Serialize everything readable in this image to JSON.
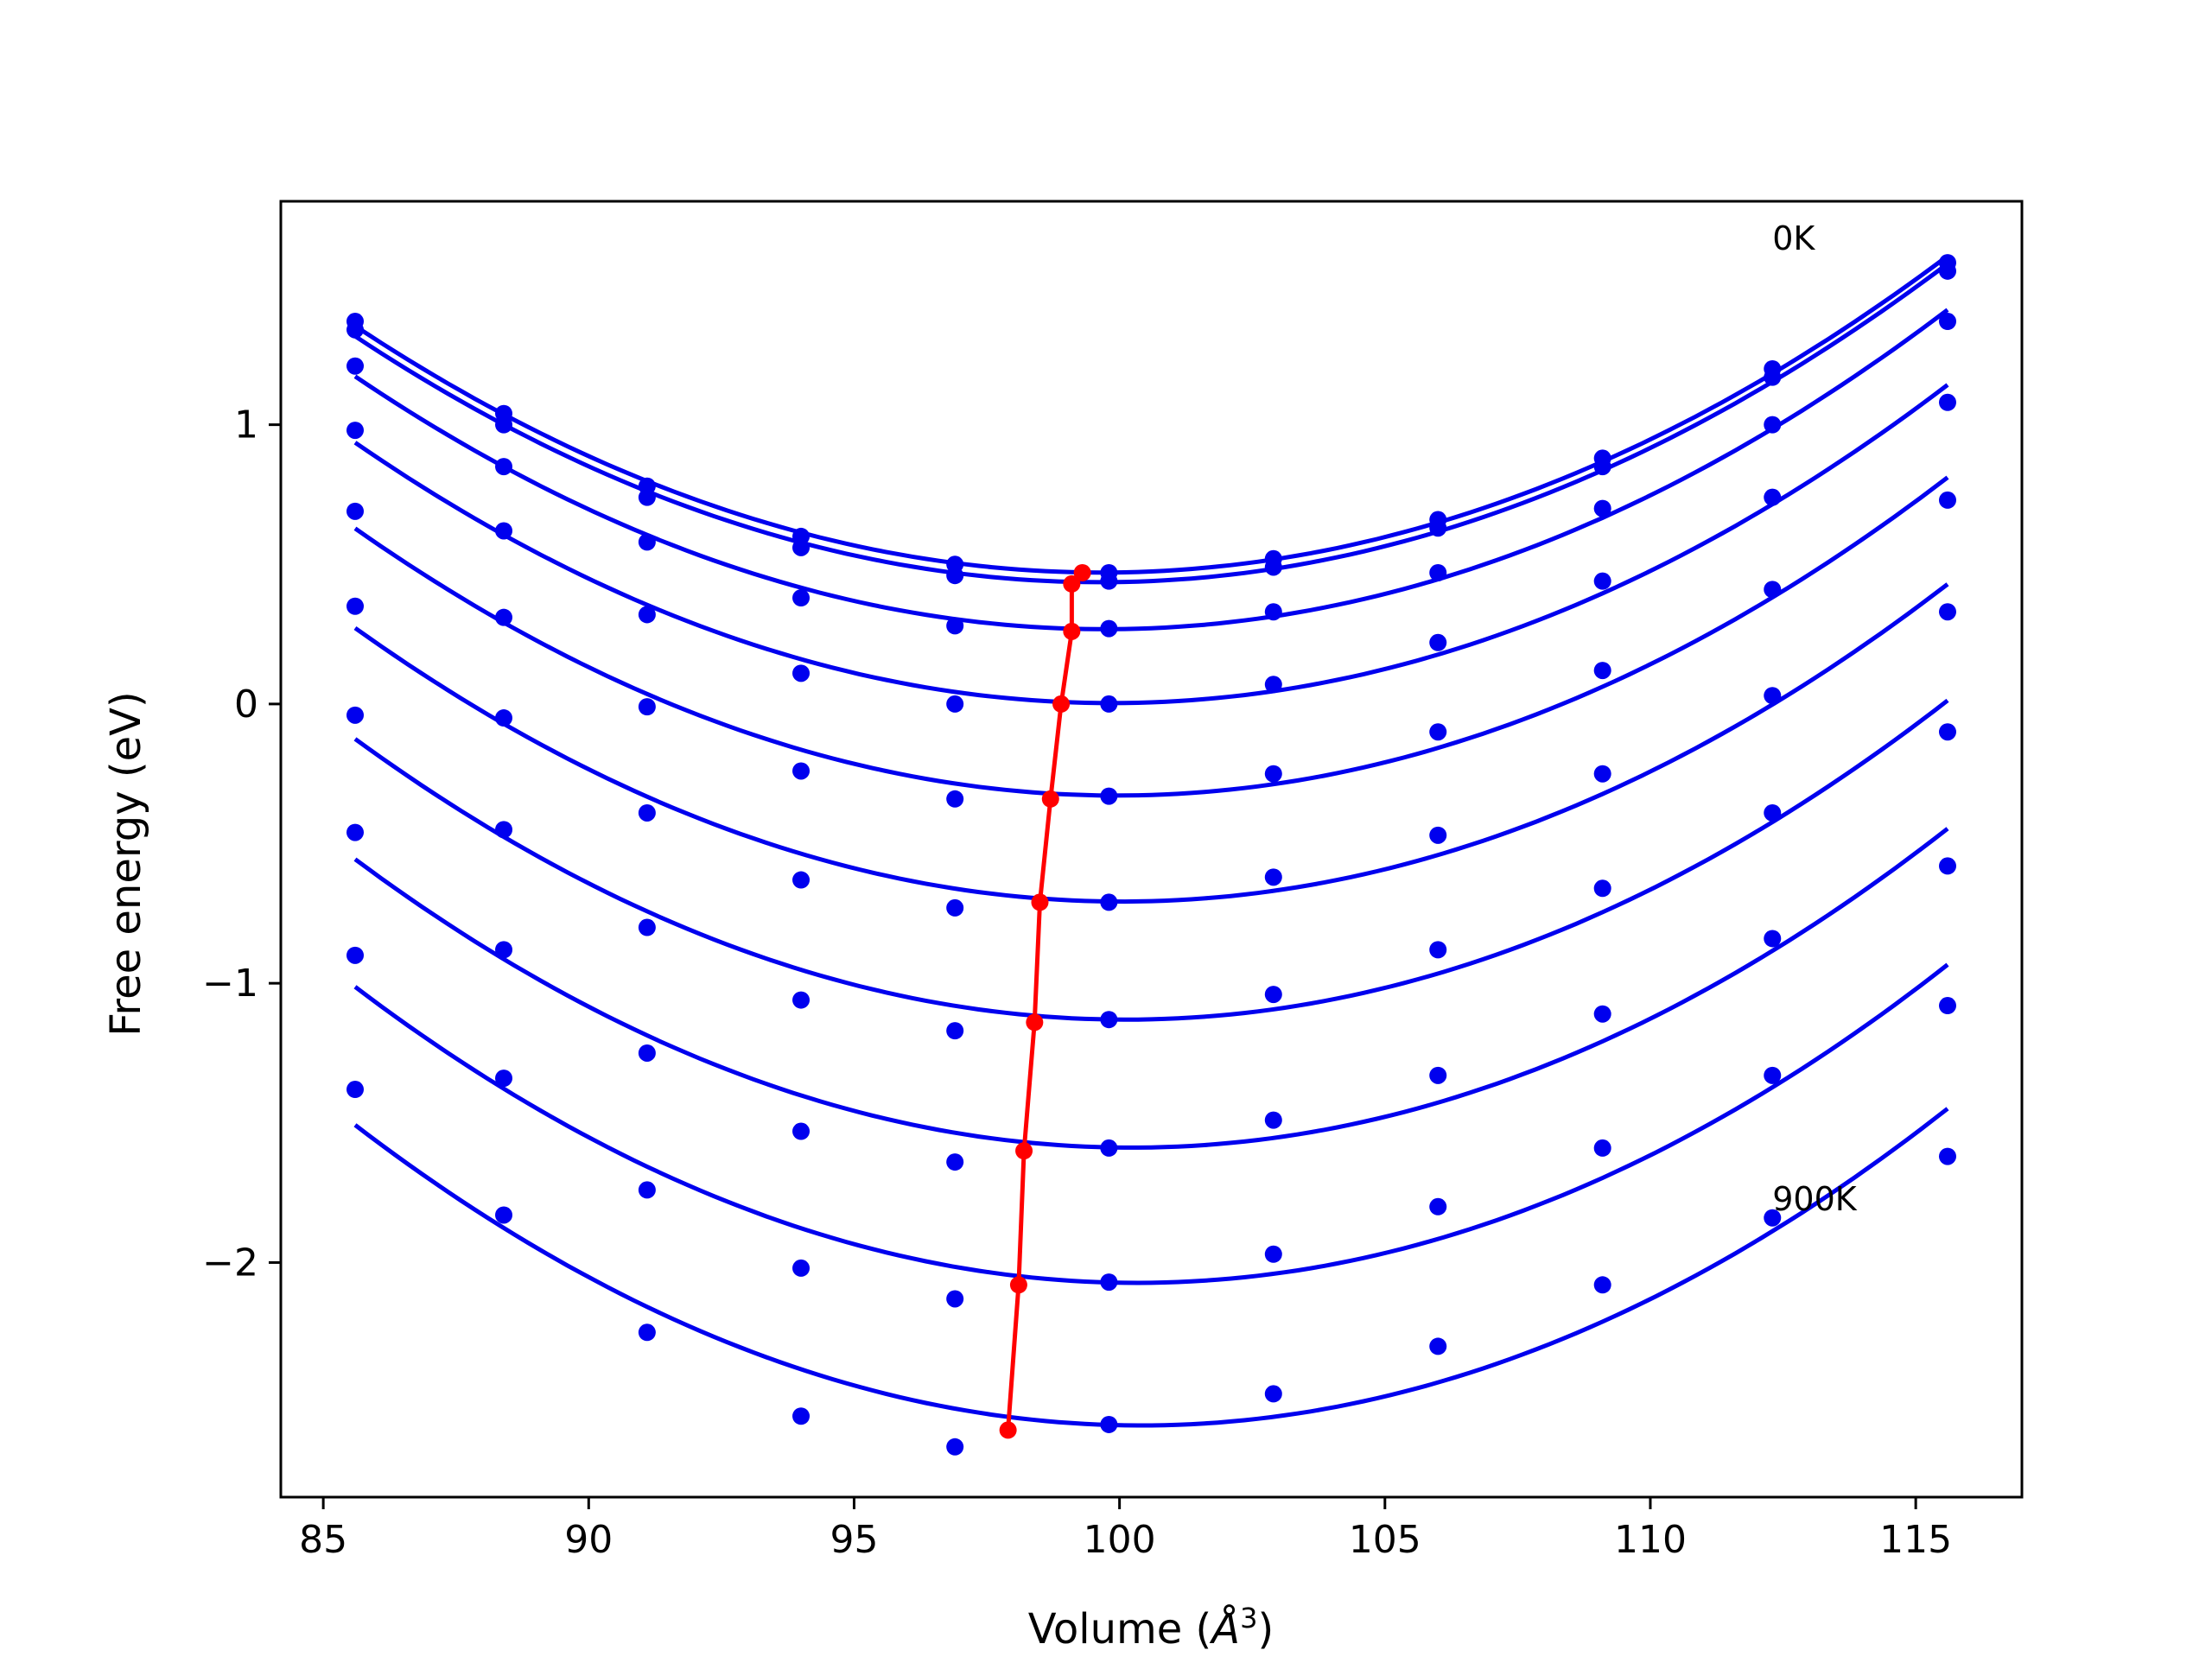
{
  "chart_data": {
    "type": "line",
    "title": "",
    "xlabel_text": "Volume (",
    "xlabel_unit_base": "Å",
    "xlabel_unit_exp": "3",
    "xlabel_close": ")",
    "ylabel": "Free energy (eV)",
    "xlim": [
      84.2,
      117.0
    ],
    "ylim": [
      -2.84,
      1.8
    ],
    "xticks": [
      85,
      90,
      95,
      100,
      105,
      110,
      115
    ],
    "xtick_labels": [
      "85",
      "90",
      "95",
      "100",
      "105",
      "110",
      "115"
    ],
    "yticks": [
      -2,
      -1,
      0,
      1
    ],
    "ytick_labels": [
      "−2",
      "−1",
      "0",
      "1"
    ],
    "grid": false,
    "legend": "none",
    "colors": {
      "curves": "#0000ee",
      "minima": "#ff0000"
    },
    "annotations": [
      {
        "text": "0K",
        "x": 112.3,
        "y": 1.67
      },
      {
        "text": "900K",
        "x": 112.3,
        "y": -1.77
      }
    ],
    "x": [
      85.6,
      88.4,
      91.1,
      94.0,
      96.9,
      99.8,
      102.9,
      106.0,
      109.1,
      112.3,
      115.6
    ],
    "series": [
      {
        "values": [
          1.37,
          1.04,
          0.78,
          0.6,
          0.5,
          0.47,
          0.52,
          0.66,
          0.88,
          1.2,
          1.58
        ],
        "fit_min": [
          99.3,
          0.47
        ]
      },
      {
        "values": [
          1.34,
          1.0,
          0.74,
          0.56,
          0.46,
          0.44,
          0.49,
          0.63,
          0.85,
          1.17,
          1.55
        ],
        "fit_min": [
          99.1,
          0.43
        ]
      },
      {
        "values": [
          1.21,
          0.85,
          0.58,
          0.38,
          0.28,
          0.27,
          0.33,
          0.47,
          0.7,
          1.0,
          1.37
        ],
        "fit_min": [
          99.1,
          0.26
        ]
      },
      {
        "values": [
          0.98,
          0.62,
          0.32,
          0.11,
          0.0,
          0.0,
          0.07,
          0.22,
          0.44,
          0.74,
          1.08
        ],
        "fit_min": [
          98.9,
          0.0
        ]
      },
      {
        "values": [
          0.69,
          0.31,
          -0.01,
          -0.24,
          -0.34,
          -0.33,
          -0.25,
          -0.1,
          0.12,
          0.41,
          0.73
        ],
        "fit_min": [
          98.7,
          -0.34
        ]
      },
      {
        "values": [
          0.35,
          -0.05,
          -0.39,
          -0.63,
          -0.73,
          -0.71,
          -0.62,
          -0.47,
          -0.25,
          0.03,
          0.33
        ],
        "fit_min": [
          98.5,
          -0.71
        ]
      },
      {
        "values": [
          -0.04,
          -0.45,
          -0.8,
          -1.06,
          -1.17,
          -1.13,
          -1.04,
          -0.88,
          -0.66,
          -0.39,
          -0.1
        ],
        "fit_min": [
          98.4,
          -1.14
        ]
      },
      {
        "values": [
          -0.46,
          -0.88,
          -1.25,
          -1.53,
          -1.64,
          -1.59,
          -1.49,
          -1.33,
          -1.11,
          -0.84,
          -0.58
        ],
        "fit_min": [
          98.2,
          -1.6
        ]
      },
      {
        "values": [
          -0.9,
          -1.34,
          -1.74,
          -2.02,
          -2.13,
          -2.07,
          -1.97,
          -1.8,
          -1.59,
          -1.33,
          -1.08
        ],
        "fit_min": [
          98.1,
          -2.08
        ]
      },
      {
        "values": [
          -1.38,
          -1.83,
          -2.25,
          -2.55,
          -2.66,
          -2.58,
          -2.47,
          -2.3,
          -2.08,
          -1.84,
          -1.62
        ],
        "fit_min": [
          97.9,
          -2.6
        ]
      }
    ],
    "fit_range": [
      85.6,
      115.6
    ]
  }
}
